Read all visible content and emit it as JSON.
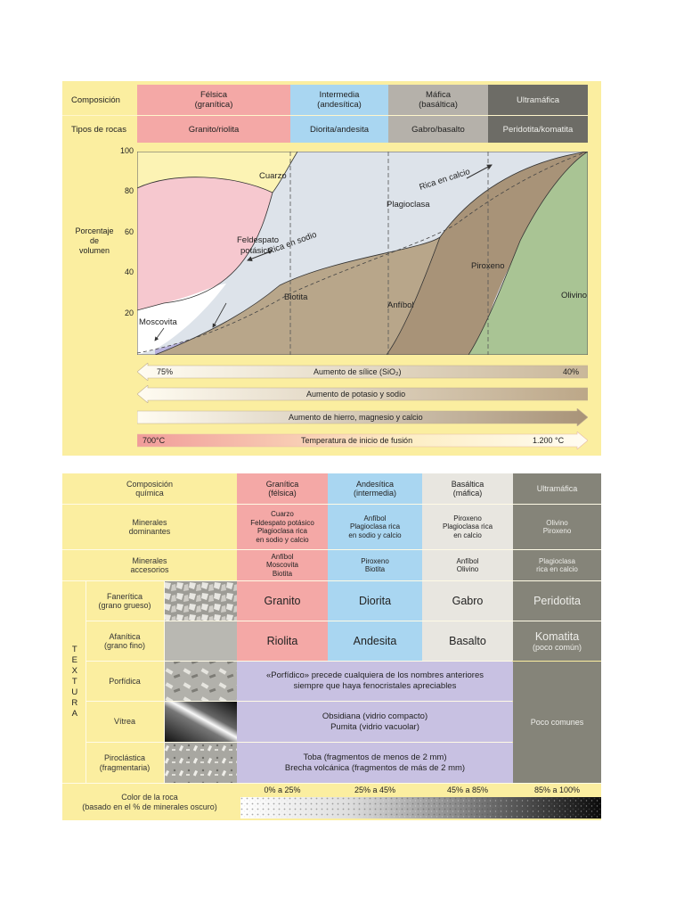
{
  "top_table": {
    "row1_label": "Composición",
    "row2_label": "Tipos de rocas",
    "felsic": "Félsica\n(granítica)",
    "intermediate": "Intermedia\n(andesítica)",
    "mafic": "Máfica\n(basáltica)",
    "ultramafic": "Ultramáfica",
    "rock_felsic": "Granito/riolita",
    "rock_intermediate": "Diorita/andesita",
    "rock_mafic": "Gabro/basalto",
    "rock_ultramafic": "Peridotita/komatita"
  },
  "chart": {
    "ylabel": "Porcentaje\nde\nvolumen",
    "ticks": [
      "100",
      "80",
      "60",
      "40",
      "20"
    ],
    "regions": {
      "cuarzo": "Cuarzo",
      "feldespato": "Feldespato\npotásico",
      "plagioclasa": "Plagioclasa",
      "biotita": "Biotita",
      "moscovita": "Moscovita",
      "anfibol": "Anfíbol",
      "piroxeno": "Piroxeno",
      "olivino": "Olivino"
    },
    "annotations": {
      "rica_calcio": "Rica en calcio",
      "rica_sodio": "Rica en sodio"
    },
    "colors": {
      "cuarzo": "#fcf3b4",
      "feldespato": "#f6c8cf",
      "plagioclasa": "#dde3ea",
      "anfibol": "#b8a68a",
      "piroxeno": "#a89378",
      "olivino": "#a9c494",
      "biotita": "#b8b2dc",
      "moscovita": "#ffffff"
    }
  },
  "arrows": {
    "silice_left": "75%",
    "silice_label": "Aumento de sílice (SiO₂)",
    "silice_right": "40%",
    "potasio_label": "Aumento de potasio y sodio",
    "hierro_label": "Aumento de hierro, magnesio y calcio",
    "temp_left": "700°C",
    "temp_label": "Temperatura de inicio de fusión",
    "temp_right": "1.200 °C"
  },
  "bottom_table": {
    "comp_label": "Composición\nquímica",
    "comp_granitica": "Granítica\n(félsica)",
    "comp_andesitica": "Andesítica\n(intermedia)",
    "comp_basaltica": "Basáltica\n(máfica)",
    "comp_ultramafica": "Ultramáfica",
    "dom_label": "Minerales\ndominantes",
    "dom_granitica": "Cuarzo\nFeldespato potásico\nPlagioclasa rica\nen sodio y calcio",
    "dom_andesitica": "Anfíbol\nPlagioclasa rica\nen sodio y calcio",
    "dom_basaltica": "Piroxeno\nPlagioclasa rica\nen calcio",
    "dom_ultramafica": "Olivino\nPiroxeno",
    "acc_label": "Minerales\naccesorios",
    "acc_granitica": "Anfíbol\nMoscovita\nBiotita",
    "acc_andesitica": "Piroxeno\nBiotita",
    "acc_basaltica": "Anfíbol\nOlivino",
    "acc_ultramafica": "Plagioclasa\nrica en calcio",
    "textura_vertical": "TEXTURA",
    "faneritica_label": "Fanerítica\n(grano grueso)",
    "faneritica_granitica": "Granito",
    "faneritica_andesitica": "Diorita",
    "faneritica_basaltica": "Gabro",
    "faneritica_ultramafica": "Peridotita",
    "afanitica_label": "Afanítica\n(grano fino)",
    "afanitica_granitica": "Riolita",
    "afanitica_andesitica": "Andesita",
    "afanitica_basaltica": "Basalto",
    "afanitica_ultramafica": "Komatita",
    "afanitica_ultramafica_note": "(poco común)",
    "porfidica_label": "Porfídica",
    "porfidica_text": "«Porfídico» precede cualquiera de los nombres anteriores\nsiempre que haya fenocristales apreciables",
    "vitrea_label": "Vítrea",
    "vitrea_text": "Obsidiana (vidrio compacto)\nPumita (vidrio vacuolar)",
    "piroclastica_label": "Piroclástica\n(fragmentaria)",
    "piroclastica_text": "Toba (fragmentos de menos de 2 mm)\nBrecha volcánica (fragmentos de más de 2 mm)",
    "poco_comunes": "Poco comunes",
    "color_label": "Color de la roca\n(basado en el % de minerales oscuro)",
    "color_1": "0% a 25%",
    "color_2": "25% a 45%",
    "color_3": "45% a 85%",
    "color_4": "85% a 100%"
  }
}
